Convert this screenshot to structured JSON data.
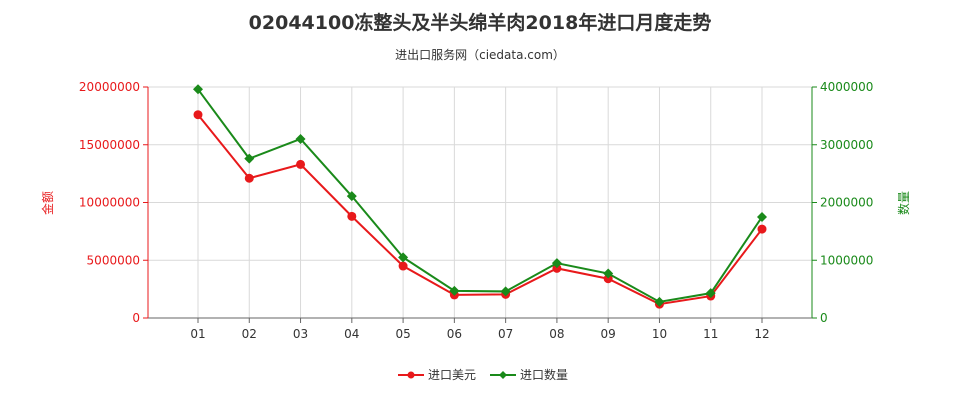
{
  "chart_data": {
    "type": "line",
    "title": "02044100冻整头及半头绵羊肉2018年进口月度走势",
    "subtitle": "进出口服务网（ciedata.com）",
    "categories": [
      "01",
      "02",
      "03",
      "04",
      "05",
      "06",
      "07",
      "08",
      "09",
      "10",
      "11",
      "12"
    ],
    "y_left": {
      "label": "金额",
      "ylim": [
        0,
        20000000
      ],
      "ticks": [
        "0",
        "5000000",
        "10000000",
        "15000000",
        "20000000"
      ],
      "color": "#e8191b"
    },
    "y_right": {
      "label": "数量",
      "ylim": [
        0,
        4000000
      ],
      "ticks": [
        "0",
        "1000000",
        "2000000",
        "3000000",
        "4000000"
      ],
      "color": "#1a8a1a"
    },
    "series": [
      {
        "name": "进口美元",
        "axis": "left",
        "color": "#e8191b",
        "marker": "circle",
        "values": [
          17600000,
          12100000,
          13300000,
          8800000,
          4500000,
          2000000,
          2050000,
          4300000,
          3400000,
          1200000,
          1900000,
          7700000
        ]
      },
      {
        "name": "进口数量",
        "axis": "right",
        "color": "#1a8a1a",
        "marker": "diamond",
        "values": [
          3960000,
          2760000,
          3100000,
          2110000,
          1050000,
          470000,
          460000,
          950000,
          770000,
          280000,
          430000,
          1750000
        ]
      }
    ],
    "grid": true,
    "legend_position": "bottom-center"
  }
}
